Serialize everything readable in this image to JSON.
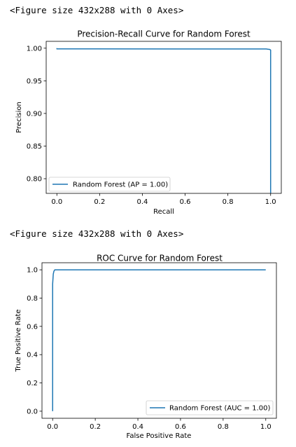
{
  "outputs": [
    {
      "text": "<Figure size 432x288 with 0 Axes>"
    },
    {
      "text": "<Figure size 432x288 with 0 Axes>"
    }
  ],
  "chart_data": [
    {
      "type": "line",
      "title": "Precision-Recall Curve for Random Forest",
      "xlabel": "Recall",
      "ylabel": "Precision",
      "xlim": [
        -0.05,
        1.05
      ],
      "ylim": [
        0.7775,
        1.0105
      ],
      "xticks": [
        0.0,
        0.2,
        0.4,
        0.6,
        0.8,
        1.0
      ],
      "xtick_labels": [
        "0.0",
        "0.2",
        "0.4",
        "0.6",
        "0.8",
        "1.0"
      ],
      "yticks": [
        0.8,
        0.85,
        0.9,
        0.95,
        1.0
      ],
      "ytick_labels": [
        "0.80",
        "0.85",
        "0.90",
        "0.95",
        "1.00"
      ],
      "grid": false,
      "legend": "lower-left",
      "series": [
        {
          "name": "Random Forest (AP = 1.00)",
          "color": "#1f77b4",
          "x": [
            0.0,
            0.0,
            0.98,
            0.997,
            1.0,
            1.0
          ],
          "y": [
            1.0,
            0.999,
            0.9988,
            0.998,
            0.997,
            0.778
          ]
        }
      ]
    },
    {
      "type": "line",
      "title": "ROC Curve for Random Forest",
      "xlabel": "False Positive Rate",
      "ylabel": "True Positive Rate",
      "xlim": [
        -0.05,
        1.05
      ],
      "ylim": [
        -0.05,
        1.05
      ],
      "xticks": [
        0.0,
        0.2,
        0.4,
        0.6,
        0.8,
        1.0
      ],
      "xtick_labels": [
        "0.0",
        "0.2",
        "0.4",
        "0.6",
        "0.8",
        "1.0"
      ],
      "yticks": [
        0.0,
        0.2,
        0.4,
        0.6,
        0.8,
        1.0
      ],
      "ytick_labels": [
        "0.0",
        "0.2",
        "0.4",
        "0.6",
        "0.8",
        "1.0"
      ],
      "grid": false,
      "legend": "lower-right",
      "series": [
        {
          "name": "Random Forest (AUC = 1.00)",
          "color": "#1f77b4",
          "x": [
            0.0,
            0.0,
            0.003,
            0.006,
            0.01,
            1.0
          ],
          "y": [
            0.0,
            0.9,
            0.97,
            0.99,
            1.0,
            1.0
          ]
        }
      ]
    }
  ]
}
